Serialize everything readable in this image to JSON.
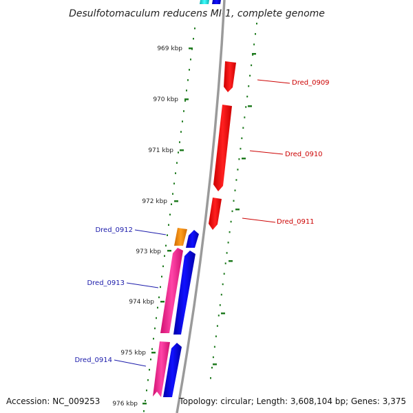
{
  "title": "Desulfotomaculum reducens MI-1, complete genome",
  "footer": {
    "accession": "Accession: NC_009253",
    "topology": "Topology: circular; Length: 3,608,104 bp; Genes: 3,375"
  },
  "ticks": [
    "969 kbp",
    "970 kbp",
    "971 kbp",
    "972 kbp",
    "973 kbp",
    "974 kbp",
    "975 kbp",
    "976 kbp"
  ],
  "genes": [
    {
      "name": "Dred_0909",
      "strand": "forward",
      "color": "#ff0000",
      "label_color": "#cc0000"
    },
    {
      "name": "Dred_0910",
      "strand": "forward",
      "color": "#ff0000",
      "label_color": "#cc0000"
    },
    {
      "name": "Dred_0911",
      "strand": "forward",
      "color": "#ff0000",
      "label_color": "#cc0000"
    },
    {
      "name": "Dred_0912",
      "strand": "reverse",
      "color": "#ff8c00",
      "label_color": "#1a1aaa"
    },
    {
      "name": "Dred_0913",
      "strand": "reverse",
      "color": "#ff3399",
      "label_color": "#1a1aaa"
    },
    {
      "name": "Dred_0914",
      "strand": "reverse",
      "color": "#ff3399",
      "label_color": "#1a1aaa"
    }
  ],
  "colors": {
    "backbone": "#888888",
    "tick_marks": "#1e7a1e",
    "cds_blue": "#0000ee",
    "top_cyan": "#22dddd"
  }
}
